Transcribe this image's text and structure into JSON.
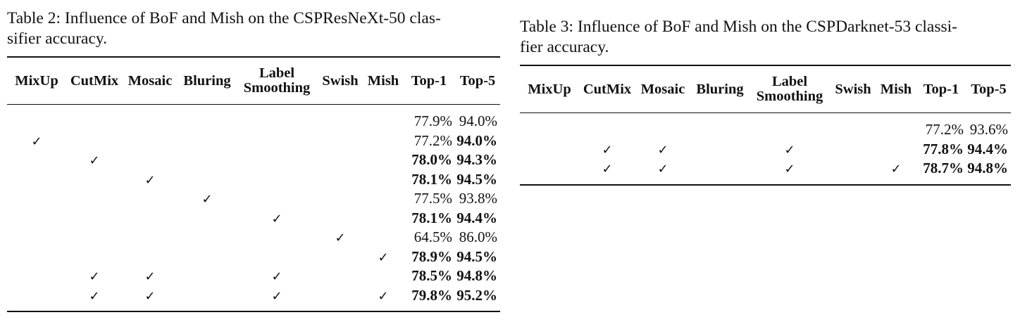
{
  "headers": [
    "MixUp",
    "CutMix",
    "Mosaic",
    "Bluring",
    "Label",
    "Smoothing",
    "Swish",
    "Mish",
    "Top-1",
    "Top-5"
  ],
  "check_glyph": "✓",
  "table2": {
    "caption_line1": "Table 2: Influence of BoF and Mish on the CSPResNeXt-50 clas-",
    "caption_line2": "sifier accuracy.",
    "rows": [
      {
        "checks": [
          false,
          false,
          false,
          false,
          false,
          false,
          false
        ],
        "top1": "77.9%",
        "top1_bold": false,
        "top5": "94.0%",
        "top5_bold": false
      },
      {
        "checks": [
          true,
          false,
          false,
          false,
          false,
          false,
          false
        ],
        "top1": "77.2%",
        "top1_bold": false,
        "top5": "94.0%",
        "top5_bold": true
      },
      {
        "checks": [
          false,
          true,
          false,
          false,
          false,
          false,
          false
        ],
        "top1": "78.0%",
        "top1_bold": true,
        "top5": "94.3%",
        "top5_bold": true
      },
      {
        "checks": [
          false,
          false,
          true,
          false,
          false,
          false,
          false
        ],
        "top1": "78.1%",
        "top1_bold": true,
        "top5": "94.5%",
        "top5_bold": true
      },
      {
        "checks": [
          false,
          false,
          false,
          true,
          false,
          false,
          false
        ],
        "top1": "77.5%",
        "top1_bold": false,
        "top5": "93.8%",
        "top5_bold": false
      },
      {
        "checks": [
          false,
          false,
          false,
          false,
          true,
          false,
          false
        ],
        "top1": "78.1%",
        "top1_bold": true,
        "top5": "94.4%",
        "top5_bold": true
      },
      {
        "checks": [
          false,
          false,
          false,
          false,
          false,
          true,
          false
        ],
        "top1": "64.5%",
        "top1_bold": false,
        "top5": "86.0%",
        "top5_bold": false
      },
      {
        "checks": [
          false,
          false,
          false,
          false,
          false,
          false,
          true
        ],
        "top1": "78.9%",
        "top1_bold": true,
        "top5": "94.5%",
        "top5_bold": true
      },
      {
        "checks": [
          false,
          true,
          true,
          false,
          true,
          false,
          false
        ],
        "top1": "78.5%",
        "top1_bold": true,
        "top5": "94.8%",
        "top5_bold": true
      },
      {
        "checks": [
          false,
          true,
          true,
          false,
          true,
          false,
          true
        ],
        "top1": "79.8%",
        "top1_bold": true,
        "top5": "95.2%",
        "top5_bold": true
      }
    ]
  },
  "table3": {
    "caption_line1": "Table 3: Influence of BoF and Mish on the CSPDarknet-53 classi-",
    "caption_line2": "fier accuracy.",
    "rows": [
      {
        "checks": [
          false,
          false,
          false,
          false,
          false,
          false,
          false
        ],
        "top1": "77.2%",
        "top1_bold": false,
        "top5": "93.6%",
        "top5_bold": false
      },
      {
        "checks": [
          false,
          true,
          true,
          false,
          true,
          false,
          false
        ],
        "top1": "77.8%",
        "top1_bold": true,
        "top5": "94.4%",
        "top5_bold": true
      },
      {
        "checks": [
          false,
          true,
          true,
          false,
          true,
          false,
          true
        ],
        "top1": "78.7%",
        "top1_bold": true,
        "top5": "94.8%",
        "top5_bold": true
      }
    ]
  }
}
